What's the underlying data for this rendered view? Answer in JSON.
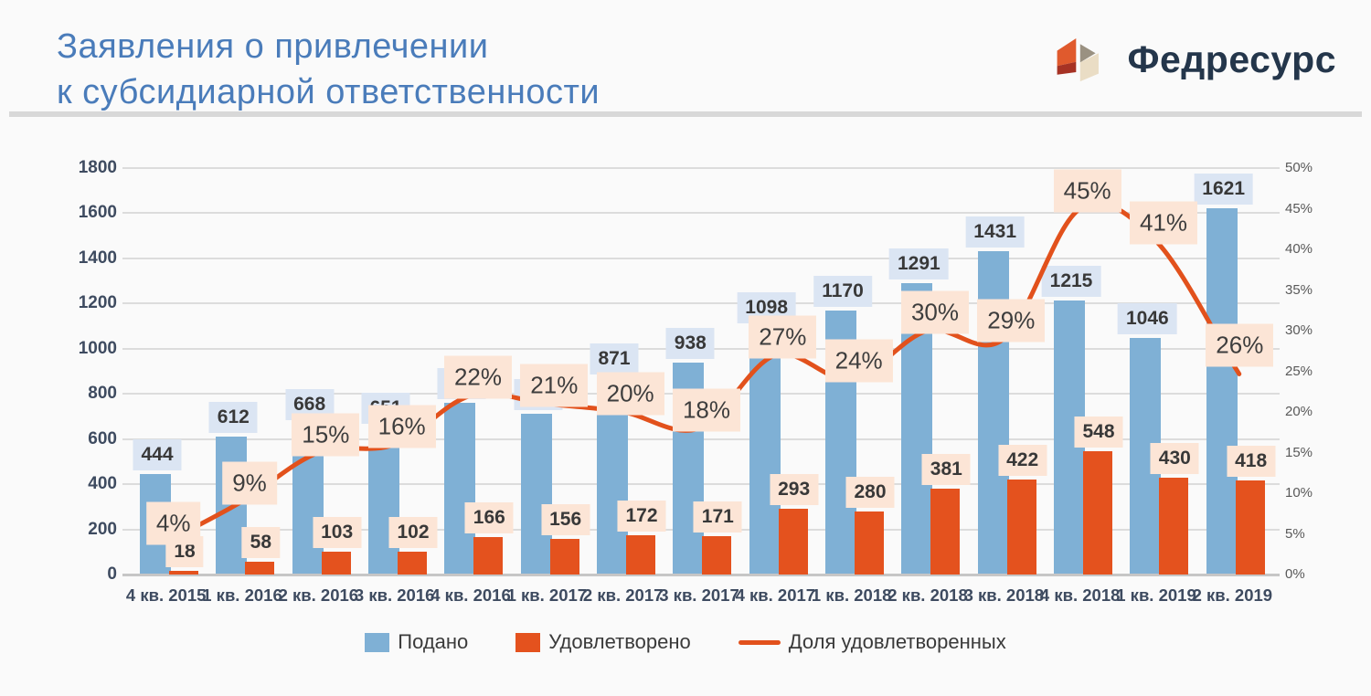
{
  "header": {
    "title_line1": "Заявления о привлечении",
    "title_line2": "к субсидиарной ответственности",
    "logo_text": "Федресурс"
  },
  "colors": {
    "title_blue": "#4a7cba",
    "filed_bar": "#7fb0d5",
    "satisfied_bar": "#e4521e",
    "trend_line": "#e2511c",
    "filed_label_bg": "#dbe5f3",
    "peach_label_bg": "#fce5d6",
    "axis_text": "#3e4b60",
    "logo_navy": "#24364b"
  },
  "chart_data": {
    "type": "bar",
    "subtype": "combo bar+line, dual axis",
    "title": "Заявления о привлечении к субсидиарной ответственности",
    "categories": [
      "4 кв. 2015",
      "1 кв. 2016",
      "2 кв. 2016",
      "3 кв. 2016",
      "4 кв. 2016",
      "1 кв. 2017",
      "2 кв. 2017",
      "3 кв. 2017",
      "4 кв. 2017",
      "1 кв. 2018",
      "2 кв. 2018",
      "3 кв. 2018",
      "4 кв. 2018",
      "1 кв. 2019",
      "2 кв. 2019"
    ],
    "series": [
      {
        "name": "Подано",
        "type": "bar",
        "axis": "left",
        "values": [
          444,
          612,
          668,
          651,
          762,
          710,
          871,
          938,
          1098,
          1170,
          1291,
          1431,
          1215,
          1046,
          1621
        ]
      },
      {
        "name": "Удовлетворено",
        "type": "bar",
        "axis": "left",
        "values": [
          18,
          58,
          103,
          102,
          166,
          156,
          172,
          171,
          293,
          280,
          381,
          422,
          548,
          430,
          418
        ]
      },
      {
        "name": "Доля удовлетворенных",
        "type": "line",
        "axis": "right",
        "unit": "%",
        "values": [
          4,
          9,
          15,
          16,
          22,
          21,
          20,
          18,
          27,
          24,
          30,
          29,
          45,
          41,
          26
        ]
      }
    ],
    "left_axis": {
      "min": 0,
      "max": 1800,
      "step": 200
    },
    "right_axis": {
      "min": 0,
      "max": 50,
      "step": 5,
      "unit": "%"
    },
    "grid": true,
    "legend_position": "bottom",
    "notes": {
      "q1_2017_filed": "bar label obscured by 21% badge in source image; value 710 estimated from bar height"
    }
  }
}
